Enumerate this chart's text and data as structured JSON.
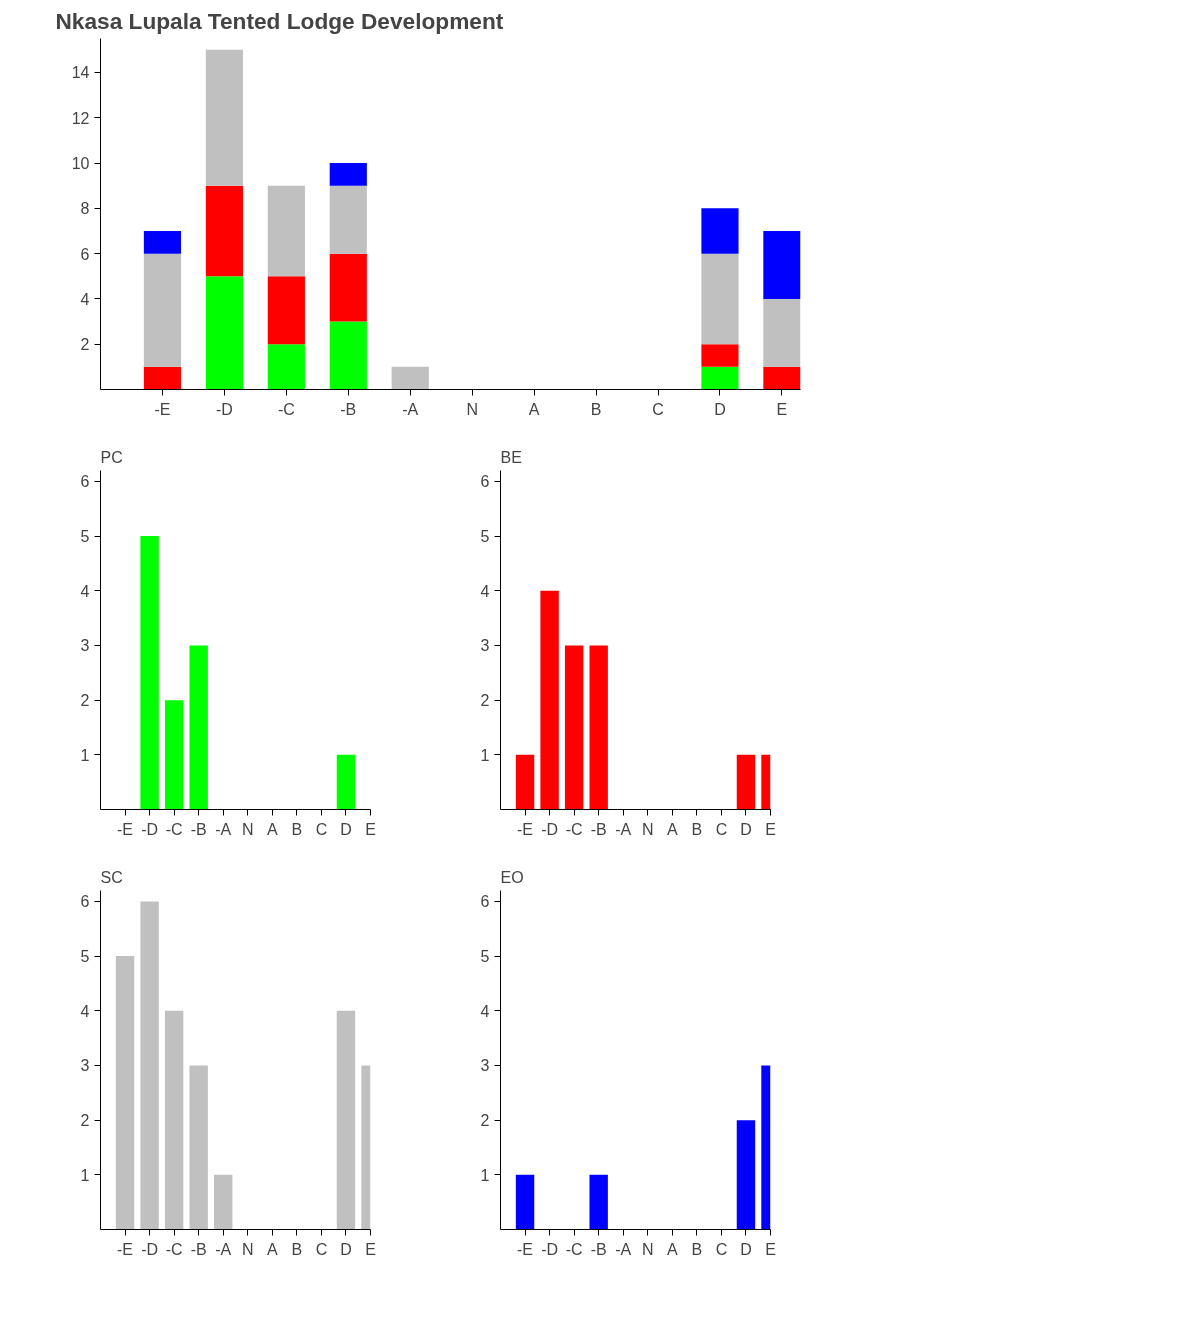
{
  "chart_data": [
    {
      "type": "bar",
      "title": "Nkasa Lupala Tented Lodge Development",
      "categories": [
        "-E",
        "-D",
        "-C",
        "-B",
        "-A",
        "N",
        "A",
        "B",
        "C",
        "D",
        "E"
      ],
      "stacked": true,
      "ylim": [
        0,
        15.5
      ],
      "yticks": [
        2,
        4,
        6,
        8,
        10,
        12,
        14
      ],
      "series": [
        {
          "color": "#00ff00",
          "values": [
            0,
            5,
            2,
            3,
            0,
            0,
            0,
            0,
            0,
            1,
            0
          ]
        },
        {
          "color": "#ff0000",
          "values": [
            1,
            4,
            3,
            3,
            0,
            0,
            0,
            0,
            0,
            1,
            1
          ]
        },
        {
          "color": "#c0c0c0",
          "values": [
            5,
            6,
            4,
            3,
            1,
            0,
            0,
            0,
            0,
            4,
            3
          ]
        },
        {
          "color": "#0000ff",
          "values": [
            1,
            0,
            0,
            1,
            0,
            0,
            0,
            0,
            0,
            2,
            3
          ]
        }
      ]
    },
    {
      "type": "bar",
      "title": "PC",
      "categories": [
        "-E",
        "-D",
        "-C",
        "-B",
        "-A",
        "N",
        "A",
        "B",
        "C",
        "D",
        "E"
      ],
      "ylim": [
        0,
        6.2
      ],
      "yticks": [
        1,
        2,
        3,
        4,
        5,
        6
      ],
      "series": [
        {
          "color": "#00ff00",
          "values": [
            0,
            5,
            2,
            3,
            0,
            0,
            0,
            0,
            0,
            1,
            0
          ]
        }
      ]
    },
    {
      "type": "bar",
      "title": "BE",
      "categories": [
        "-E",
        "-D",
        "-C",
        "-B",
        "-A",
        "N",
        "A",
        "B",
        "C",
        "D",
        "E"
      ],
      "ylim": [
        0,
        6.2
      ],
      "yticks": [
        1,
        2,
        3,
        4,
        5,
        6
      ],
      "series": [
        {
          "color": "#ff0000",
          "values": [
            1,
            4,
            3,
            3,
            0,
            0,
            0,
            0,
            0,
            1,
            1
          ]
        }
      ]
    },
    {
      "type": "bar",
      "title": "SC",
      "categories": [
        "-E",
        "-D",
        "-C",
        "-B",
        "-A",
        "N",
        "A",
        "B",
        "C",
        "D",
        "E"
      ],
      "ylim": [
        0,
        6.2
      ],
      "yticks": [
        1,
        2,
        3,
        4,
        5,
        6
      ],
      "series": [
        {
          "color": "#c0c0c0",
          "values": [
            5,
            6,
            4,
            3,
            1,
            0,
            0,
            0,
            0,
            4,
            3
          ]
        }
      ]
    },
    {
      "type": "bar",
      "title": "EO",
      "categories": [
        "-E",
        "-D",
        "-C",
        "-B",
        "-A",
        "N",
        "A",
        "B",
        "C",
        "D",
        "E"
      ],
      "ylim": [
        0,
        6.2
      ],
      "yticks": [
        1,
        2,
        3,
        4,
        5,
        6
      ],
      "series": [
        {
          "color": "#0000ff",
          "values": [
            1,
            0,
            0,
            1,
            0,
            0,
            0,
            0,
            0,
            2,
            3
          ]
        }
      ]
    }
  ]
}
